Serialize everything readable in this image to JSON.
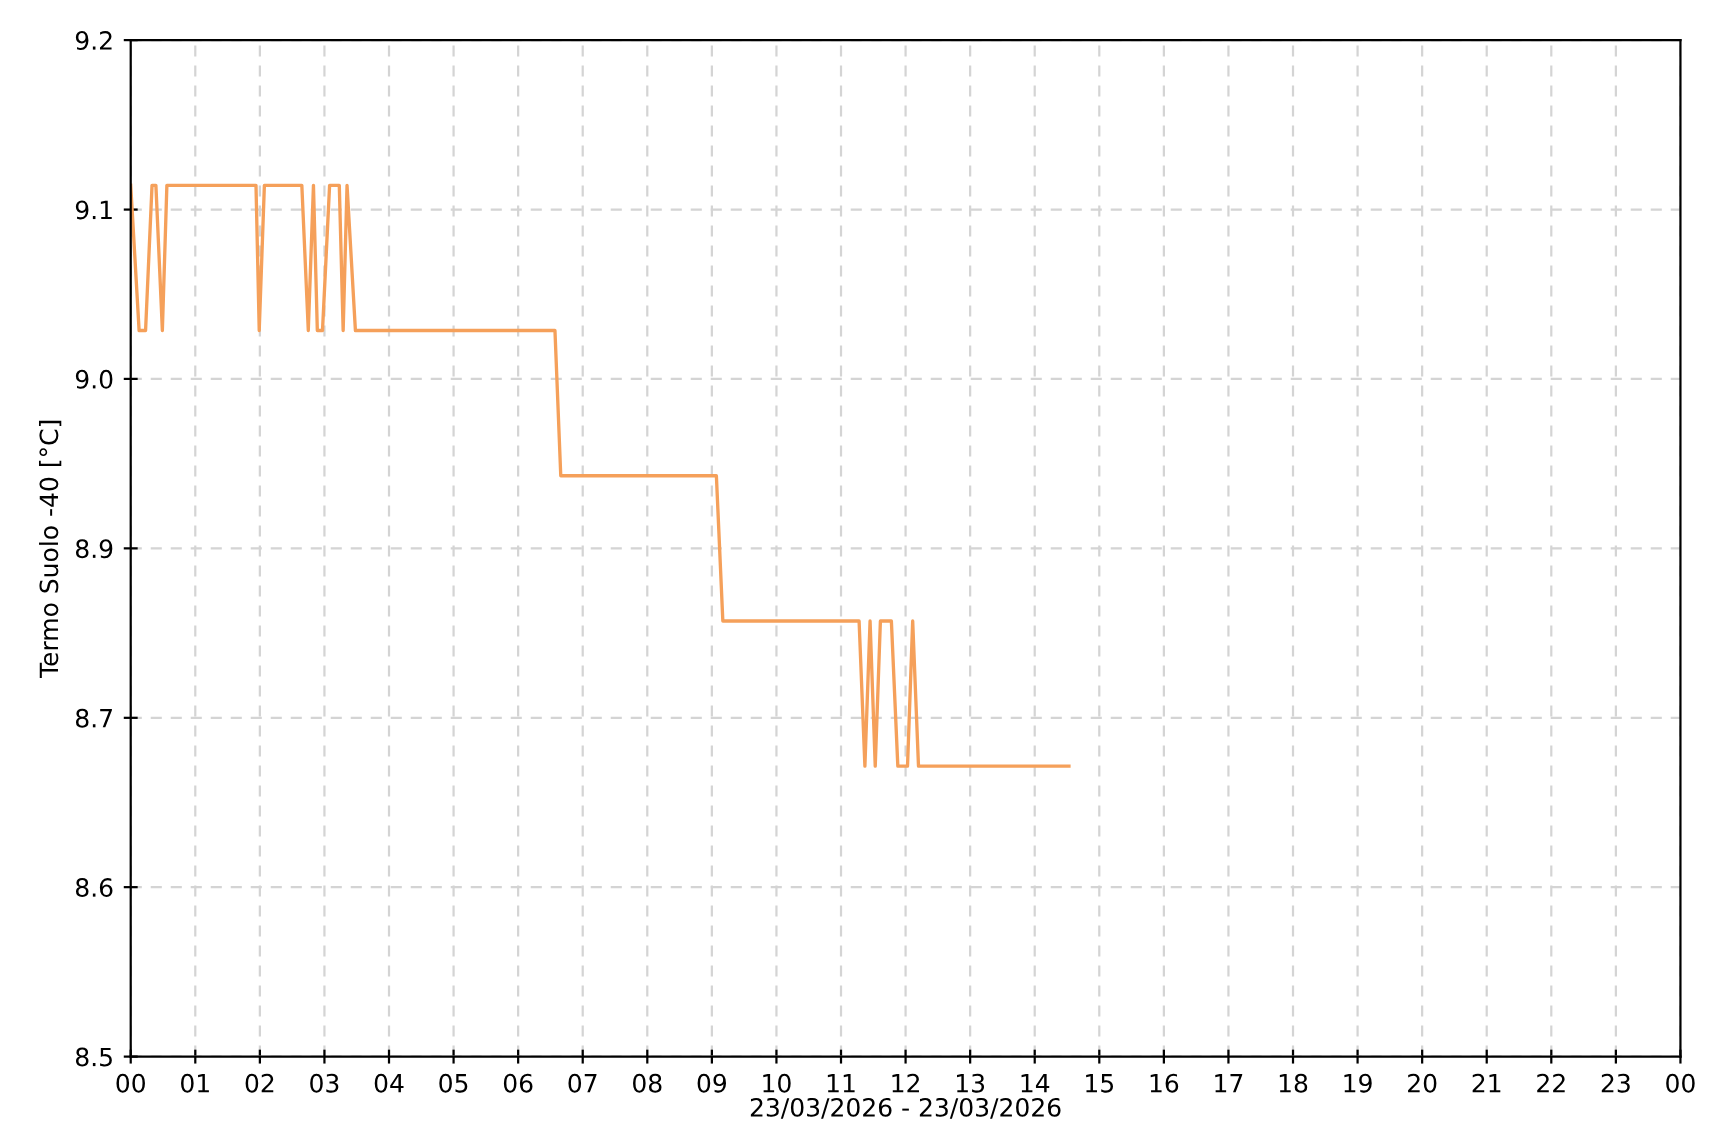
{
  "chart_data": {
    "type": "line",
    "xlabel": "23/03/2026 - 23/03/2026",
    "ylabel": "Termo Suolo -40 [°C]",
    "x": [
      0,
      0.13,
      0.23,
      0.33,
      0.39,
      0.49,
      0.56,
      1.94,
      1.99,
      2.07,
      2.65,
      2.75,
      2.83,
      2.89,
      2.97,
      3.08,
      3.23,
      3.29,
      3.35,
      3.48,
      6.57,
      6.66,
      9.07,
      9.17,
      11.28,
      11.37,
      11.45,
      11.53,
      11.61,
      11.78,
      11.88,
      12.03,
      12.11,
      12.2,
      14.53
    ],
    "series": [
      {
        "color": "#f5a05a",
        "values": [
          9.1,
          9.0,
          9.0,
          9.1,
          9.1,
          9.0,
          9.1,
          9.1,
          9.0,
          9.1,
          9.1,
          9.0,
          9.1,
          9.0,
          9.0,
          9.1,
          9.1,
          9.0,
          9.1,
          9.0,
          9.0,
          8.9,
          8.9,
          8.8,
          8.8,
          8.7,
          8.8,
          8.7,
          8.8,
          8.8,
          8.7,
          8.7,
          8.8,
          8.7,
          8.7
        ]
      }
    ],
    "xlim": [
      0,
      24
    ],
    "xticks": [
      {
        "value": 0,
        "label": "00"
      },
      {
        "value": 1,
        "label": "01"
      },
      {
        "value": 2,
        "label": "02"
      },
      {
        "value": 3,
        "label": "03"
      },
      {
        "value": 4,
        "label": "04"
      },
      {
        "value": 5,
        "label": "05"
      },
      {
        "value": 6,
        "label": "06"
      },
      {
        "value": 7,
        "label": "07"
      },
      {
        "value": 8,
        "label": "08"
      },
      {
        "value": 9,
        "label": "09"
      },
      {
        "value": 10,
        "label": "10"
      },
      {
        "value": 11,
        "label": "11"
      },
      {
        "value": 12,
        "label": "12"
      },
      {
        "value": 13,
        "label": "13"
      },
      {
        "value": 14,
        "label": "14"
      },
      {
        "value": 15,
        "label": "15"
      },
      {
        "value": 16,
        "label": "16"
      },
      {
        "value": 17,
        "label": "17"
      },
      {
        "value": 18,
        "label": "18"
      },
      {
        "value": 19,
        "label": "19"
      },
      {
        "value": 20,
        "label": "20"
      },
      {
        "value": 21,
        "label": "21"
      },
      {
        "value": 22,
        "label": "22"
      },
      {
        "value": 23,
        "label": "23"
      },
      {
        "value": 24,
        "label": "00"
      }
    ],
    "ylim": [
      8.5,
      9.2
    ],
    "yticks": [
      8.5,
      {
        "value": 8.6167,
        "label": "8.6"
      },
      {
        "value": 8.7333,
        "label": "8.7"
      },
      {
        "value": 8.85,
        "label": "8.9"
      },
      {
        "value": 8.9667,
        "label": "9.0"
      },
      {
        "value": 9.0833,
        "label": "9.1"
      },
      9.2
    ],
    "grid": true,
    "line_style": "solid",
    "marker": "none"
  }
}
